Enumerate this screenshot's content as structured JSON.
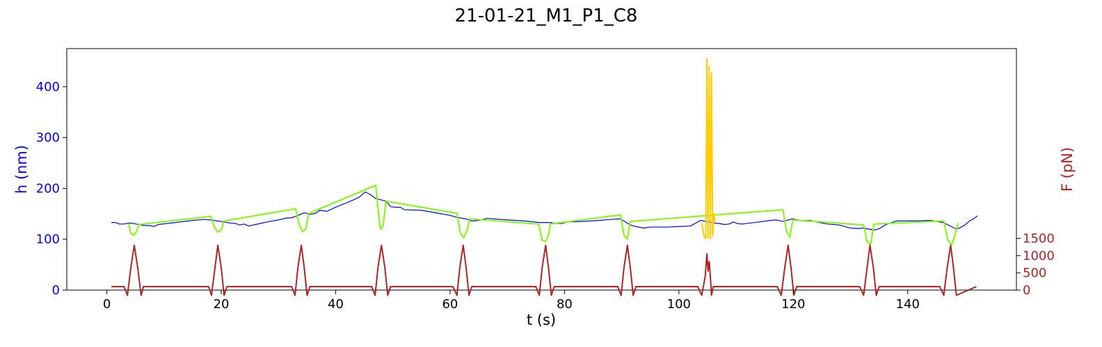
{
  "chart_data": {
    "type": "line",
    "title": "21-01-21_M1_P1_C8",
    "xlabel": "t (s)",
    "ylabel_left": "h (nm)",
    "ylabel_right": "F (pN)",
    "xlim": [
      -7,
      159
    ],
    "ylim_left": [
      0,
      475
    ],
    "ylim_right": [
      0,
      7000
    ],
    "x_ticks": [
      "0",
      "20",
      "40",
      "60",
      "80",
      "100",
      "120",
      "140"
    ],
    "y_left_ticks": [
      "0",
      "100",
      "200",
      "300",
      "400"
    ],
    "y_right_ticks": [
      "0",
      "500",
      "1000",
      "1500"
    ],
    "colors": {
      "h_base": "#0000ff",
      "h_compression": "#7cfc00",
      "h_oscillation": "#ffcc00",
      "force": "#b22222",
      "left_axis": "#0000ff",
      "right_axis": "#b22222"
    },
    "series": [
      {
        "axis": "left",
        "color": "#0000ff",
        "x": [
          0.8,
          1.5,
          2.2,
          3.0,
          3.5,
          4.2,
          6.0,
          6.8,
          7.5,
          8.2,
          9.0,
          12,
          15,
          17,
          18.2,
          20.5,
          21.5,
          22.5,
          23.2,
          24,
          24.8,
          26,
          28,
          30,
          31.5,
          32.2,
          33,
          34.5,
          35.5,
          36.5,
          37.2,
          38.5,
          40,
          42,
          44,
          45.2,
          46.2,
          47.0,
          48.8,
          49.6,
          50.5,
          51.3,
          52,
          55,
          58,
          60,
          61.2,
          62.8,
          63.8,
          65,
          66.5,
          70,
          73,
          74.8,
          75.5,
          77.5,
          78.5,
          79.5,
          80.5,
          83,
          86,
          88,
          89.8,
          91.5,
          92.5,
          93.8,
          95,
          98,
          100,
          102,
          103.8,
          106.2,
          107,
          108,
          108.8,
          109.5,
          110.2,
          111,
          114,
          116,
          117,
          118.2,
          119.8,
          120.8,
          121.5,
          122.2,
          123,
          124,
          126,
          128,
          130,
          131.5,
          132.2,
          134.2,
          135,
          136.2,
          138,
          141,
          144,
          145.5,
          146.2,
          148.5,
          149.2,
          150,
          150.8,
          151.6,
          152.2
        ],
        "y": [
          133,
          133,
          130,
          130,
          131,
          132,
          128,
          127,
          127,
          125,
          129,
          133,
          137,
          139,
          138,
          134,
          132,
          131,
          128,
          130,
          126,
          129,
          134,
          138,
          142,
          142,
          145,
          152,
          149,
          151,
          157,
          155,
          163,
          172,
          182,
          193,
          187,
          180,
          175,
          164,
          163,
          163,
          158,
          157,
          151,
          147,
          143,
          140,
          136,
          137,
          141,
          138,
          136,
          134,
          133,
          133,
          131,
          131,
          134,
          135,
          137,
          139,
          140,
          128,
          125,
          122,
          124,
          124,
          125,
          126,
          137,
          132,
          131,
          129,
          130,
          134,
          131,
          130,
          134,
          137,
          138,
          135,
          140,
          138,
          137,
          137,
          137,
          134,
          130,
          128,
          122,
          121,
          122,
          118,
          121,
          129,
          136,
          136,
          137,
          134,
          133,
          120,
          123,
          128,
          136,
          141,
          146
        ]
      },
      {
        "axis": "left",
        "color": "#7cfc00",
        "x": [
          3.8,
          4.2,
          4.7,
          5.2,
          5.6,
          18.2,
          18.8,
          19.4,
          20.0,
          20.5,
          33.0,
          33.6,
          34.2,
          34.8,
          35.3,
          47.0,
          47.8,
          48.3,
          48.8,
          61.2,
          61.8,
          62.4,
          63.0,
          63.4,
          75.5,
          76.1,
          76.7,
          77.2,
          77.5,
          89.8,
          90.4,
          91.0,
          91.5,
          118.2,
          118.8,
          119.4,
          119.9,
          132.3,
          132.9,
          133.5,
          134.1,
          146.3,
          147.0,
          147.7,
          148.3,
          148.8
        ],
        "y": [
          131,
          112,
          108,
          115,
          129,
          145,
          124,
          114,
          118,
          136,
          160,
          130,
          115,
          120,
          151,
          206,
          120,
          126,
          175,
          151,
          112,
          103,
          118,
          140,
          130,
          98,
          96,
          108,
          130,
          148,
          108,
          100,
          135,
          158,
          116,
          104,
          138,
          128,
          95,
          89,
          130,
          136,
          98,
          89,
          110,
          132
        ]
      },
      {
        "axis": "left",
        "color": "#ffcc00",
        "x": [
          104.0,
          104.4,
          104.7,
          104.9,
          105.1,
          105.3,
          105.5,
          105.7,
          105.9,
          106.1,
          106.3
        ],
        "y": [
          132,
          106,
          101,
          455,
          103,
          440,
          101,
          428,
          106,
          150,
          135
        ]
      },
      {
        "axis": "right",
        "color": "#b22222",
        "x": [
          0.8,
          3.0,
          3.6,
          4.2,
          4.8,
          5.4,
          6.0,
          6.4,
          17.8,
          18.3,
          18.9,
          19.4,
          20.0,
          20.5,
          21.0,
          32.3,
          32.9,
          33.4,
          34.0,
          34.5,
          35.0,
          35.5,
          46.3,
          46.9,
          47.4,
          48.0,
          48.6,
          49.1,
          49.6,
          60.5,
          61.2,
          61.7,
          62.3,
          62.8,
          63.3,
          63.8,
          75.0,
          75.6,
          76.1,
          76.7,
          77.2,
          77.7,
          78.2,
          89.3,
          89.9,
          90.4,
          91.0,
          91.5,
          92.0,
          92.5,
          103.3,
          104.0,
          104.6,
          104.9,
          105.1,
          105.3,
          105.5,
          105.7,
          106.0,
          106.5,
          117.2,
          117.9,
          118.5,
          119.1,
          119.6,
          120.1,
          120.6,
          131.6,
          132.3,
          132.9,
          133.4,
          134.0,
          134.5,
          135.0,
          145.6,
          146.3,
          146.9,
          147.5,
          148.0,
          148.5,
          152.0
        ],
        "y": [
          100,
          100,
          -150,
          650,
          1300,
          650,
          -150,
          100,
          100,
          -150,
          650,
          1300,
          650,
          -150,
          100,
          100,
          -150,
          650,
          1300,
          650,
          -150,
          100,
          100,
          -150,
          650,
          1300,
          650,
          -150,
          100,
          100,
          -150,
          650,
          1300,
          650,
          -150,
          100,
          100,
          -150,
          650,
          1300,
          650,
          -150,
          100,
          100,
          -150,
          650,
          1300,
          650,
          -150,
          100,
          100,
          -150,
          400,
          1050,
          550,
          830,
          380,
          -150,
          100,
          100,
          100,
          -150,
          650,
          1300,
          650,
          -150,
          100,
          100,
          -150,
          650,
          1300,
          650,
          -150,
          100,
          100,
          -150,
          650,
          1300,
          650,
          -150,
          100
        ]
      }
    ]
  }
}
